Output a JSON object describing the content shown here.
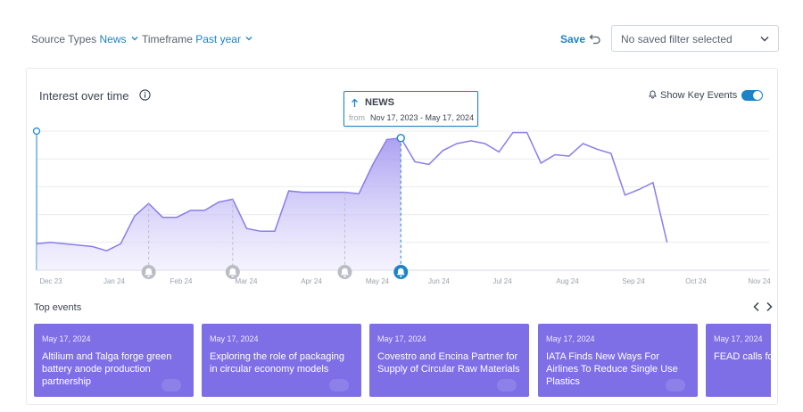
{
  "filters": {
    "source_types": {
      "label": "Source Types",
      "value": "News"
    },
    "timeframe": {
      "label": "Timeframe",
      "value": "Past year"
    }
  },
  "toolbar": {
    "save_label": "Save",
    "saved_filter_placeholder": "No saved filter selected"
  },
  "chart_card": {
    "title": "Interest over time",
    "key_events_label": "Show Key Events",
    "key_events_on": true
  },
  "tooltip": {
    "series": "NEWS",
    "from_label": "from",
    "range": "Nov 17, 2023 - May 17, 2024"
  },
  "chart_data": {
    "type": "area",
    "title": "Interest over time",
    "x_ticks": [
      "Dec 23",
      "Jan 24",
      "Feb 24",
      "Mar 24",
      "Apr 24",
      "May 24",
      "Jun 24",
      "Jul 24",
      "Aug 24",
      "Sep 24",
      "Oct 24",
      "Nov 24"
    ],
    "x_range": [
      "Nov 17, 2023",
      "Nov 17, 2024"
    ],
    "y_range": [
      0,
      100
    ],
    "grid": true,
    "highlighted_range": [
      "Nov 17, 2023",
      "May 17, 2024"
    ],
    "series": [
      {
        "name": "NEWS",
        "points": [
          {
            "x": "2023-11-17",
            "y": 19
          },
          {
            "x": "2023-11-24",
            "y": 20
          },
          {
            "x": "2023-12-01",
            "y": 19
          },
          {
            "x": "2023-12-08",
            "y": 18
          },
          {
            "x": "2023-12-15",
            "y": 17
          },
          {
            "x": "2023-12-22",
            "y": 14
          },
          {
            "x": "2023-12-29",
            "y": 19
          },
          {
            "x": "2024-01-05",
            "y": 39
          },
          {
            "x": "2024-01-12",
            "y": 48
          },
          {
            "x": "2024-01-19",
            "y": 38
          },
          {
            "x": "2024-01-26",
            "y": 38
          },
          {
            "x": "2024-02-02",
            "y": 43
          },
          {
            "x": "2024-02-09",
            "y": 43
          },
          {
            "x": "2024-02-16",
            "y": 49
          },
          {
            "x": "2024-02-23",
            "y": 51
          },
          {
            "x": "2024-03-01",
            "y": 30
          },
          {
            "x": "2024-03-08",
            "y": 28
          },
          {
            "x": "2024-03-15",
            "y": 28
          },
          {
            "x": "2024-03-22",
            "y": 57
          },
          {
            "x": "2024-03-29",
            "y": 56
          },
          {
            "x": "2024-04-05",
            "y": 56
          },
          {
            "x": "2024-04-12",
            "y": 56
          },
          {
            "x": "2024-04-19",
            "y": 56
          },
          {
            "x": "2024-04-26",
            "y": 55
          },
          {
            "x": "2024-05-03",
            "y": 76
          },
          {
            "x": "2024-05-10",
            "y": 94
          },
          {
            "x": "2024-05-17",
            "y": 95
          },
          {
            "x": "2024-05-24",
            "y": 78
          },
          {
            "x": "2024-05-31",
            "y": 76
          },
          {
            "x": "2024-06-07",
            "y": 86
          },
          {
            "x": "2024-06-14",
            "y": 91
          },
          {
            "x": "2024-06-21",
            "y": 93
          },
          {
            "x": "2024-06-28",
            "y": 91
          },
          {
            "x": "2024-07-05",
            "y": 85
          },
          {
            "x": "2024-07-12",
            "y": 99
          },
          {
            "x": "2024-07-19",
            "y": 99
          },
          {
            "x": "2024-07-26",
            "y": 77
          },
          {
            "x": "2024-08-02",
            "y": 83
          },
          {
            "x": "2024-08-09",
            "y": 82
          },
          {
            "x": "2024-08-16",
            "y": 91
          },
          {
            "x": "2024-08-23",
            "y": 87
          },
          {
            "x": "2024-08-30",
            "y": 84
          },
          {
            "x": "2024-09-06",
            "y": 54
          },
          {
            "x": "2024-09-13",
            "y": 58
          },
          {
            "x": "2024-09-20",
            "y": 63
          },
          {
            "x": "2024-09-27",
            "y": 20
          }
        ]
      }
    ],
    "key_events": [
      {
        "x": "2024-01-12",
        "active": false
      },
      {
        "x": "2024-02-23",
        "active": false
      },
      {
        "x": "2024-04-19",
        "active": false
      },
      {
        "x": "2024-05-17",
        "active": true
      }
    ]
  },
  "top_events": {
    "title": "Top events",
    "items": [
      {
        "date": "May 17, 2024",
        "headline": "Altilium and Talga forge green battery anode production partnership"
      },
      {
        "date": "May 17, 2024",
        "headline": "Exploring the role of packaging in circular economy models"
      },
      {
        "date": "May 17, 2024",
        "headline": "Covestro and Encina Partner for Supply of Circular Raw Materials"
      },
      {
        "date": "May 17, 2024",
        "headline": "IATA Finds New Ways For Airlines To Reduce Single Use Plastics"
      },
      {
        "date": "May 17, 2024",
        "headline": "FEAD calls for a European"
      }
    ]
  },
  "colors": {
    "accent": "#1b84c6",
    "series": "#7e6fe6",
    "event_card": "#7e6fe6"
  }
}
